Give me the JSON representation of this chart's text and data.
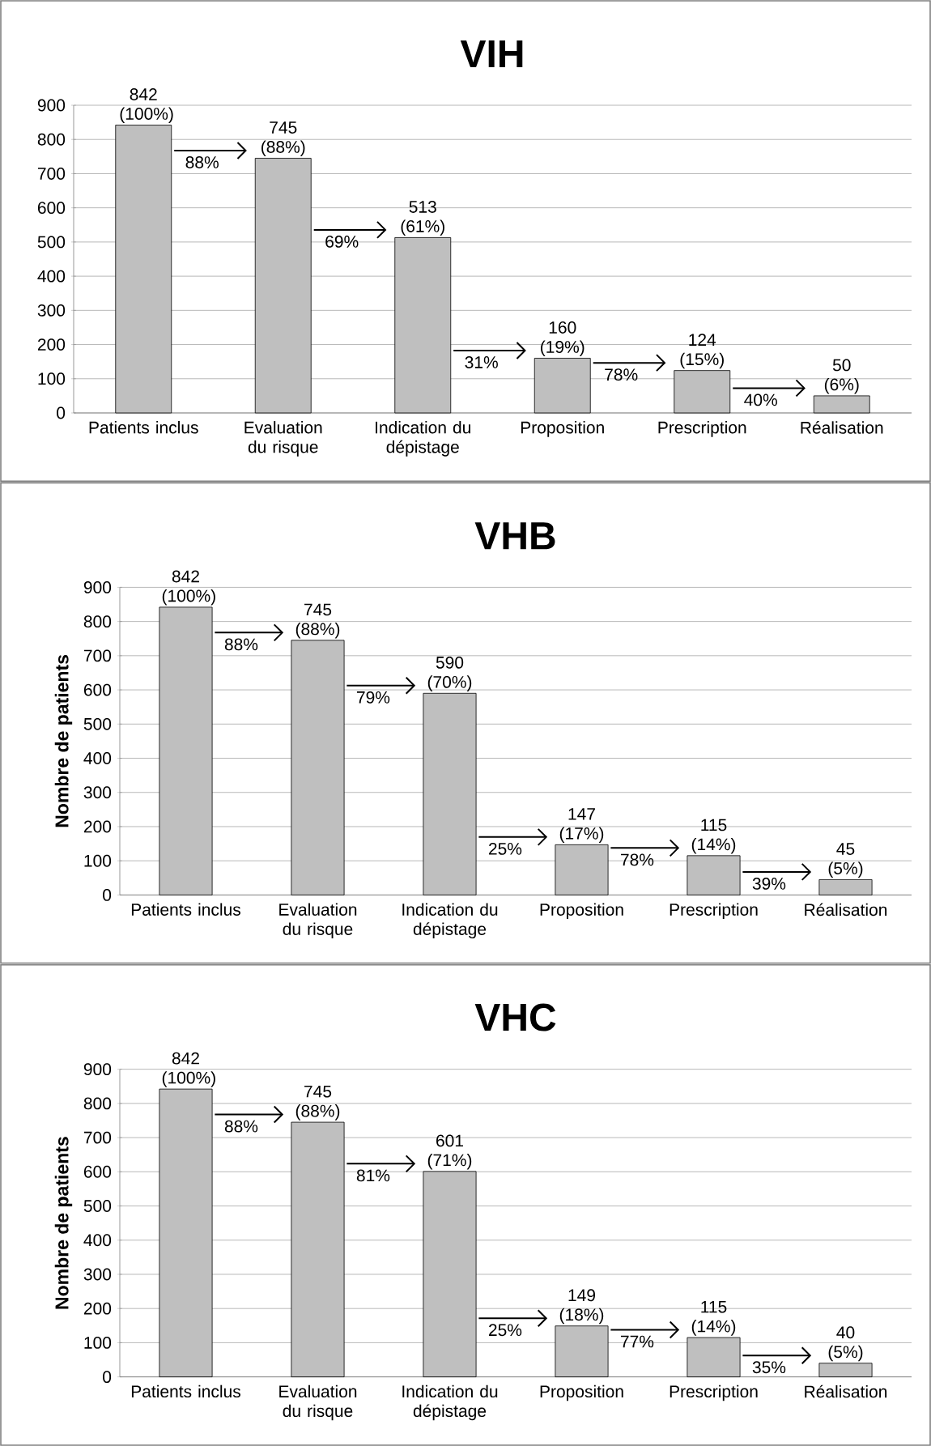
{
  "chart_data": [
    {
      "type": "bar",
      "title": "VIH",
      "categories": [
        "Patients inclus",
        "Evaluation du risque",
        "Indication du dépistage",
        "Proposition",
        "Prescription",
        "Réalisation"
      ],
      "values": [
        842,
        745,
        513,
        160,
        124,
        50
      ],
      "value_labels": [
        "842 (100%)",
        "745 (88%)",
        "513 (61%)",
        "160 (19%)",
        "124 (15%)",
        "50 (6%)"
      ],
      "color": "#bfbfbf",
      "ylim": [
        0,
        900
      ],
      "yticks": [
        0,
        100,
        200,
        300,
        400,
        500,
        600,
        700,
        800,
        900
      ],
      "grid": "y",
      "annotations": [
        "88%",
        "69%",
        "31%",
        "78%",
        "40%"
      ]
    },
    {
      "type": "bar",
      "title": "VHB",
      "ylabel": "Nombre de patients",
      "categories": [
        "Patients inclus",
        "Evaluation du risque",
        "Indication du dépistage",
        "Proposition",
        "Prescription",
        "Réalisation"
      ],
      "values": [
        842,
        745,
        590,
        147,
        115,
        45
      ],
      "value_labels": [
        "842 (100%)",
        "745 (88%)",
        "590 (70%)",
        "147 (17%)",
        "115 (14%)",
        "45 (5%)"
      ],
      "color": "#bfbfbf",
      "ylim": [
        0,
        900
      ],
      "yticks": [
        0,
        100,
        200,
        300,
        400,
        500,
        600,
        700,
        800,
        900
      ],
      "grid": "y",
      "annotations": [
        "88%",
        "79%",
        "25%",
        "78%",
        "39%"
      ]
    },
    {
      "type": "bar",
      "title": "VHC",
      "ylabel": "Nombre de patients",
      "categories": [
        "Patients inclus",
        "Evaluation du risque",
        "Indication du dépistage",
        "Proposition",
        "Prescription",
        "Réalisation"
      ],
      "values": [
        842,
        745,
        601,
        149,
        115,
        40
      ],
      "value_labels": [
        "842 (100%)",
        "745 (88%)",
        "601 (71%)",
        "149 (18%)",
        "115 (14%)",
        "40 (5%)"
      ],
      "color": "#bfbfbf",
      "ylim": [
        0,
        900
      ],
      "yticks": [
        0,
        100,
        200,
        300,
        400,
        500,
        600,
        700,
        800,
        900
      ],
      "grid": "y",
      "annotations": [
        "88%",
        "81%",
        "25%",
        "77%",
        "35%"
      ]
    }
  ]
}
